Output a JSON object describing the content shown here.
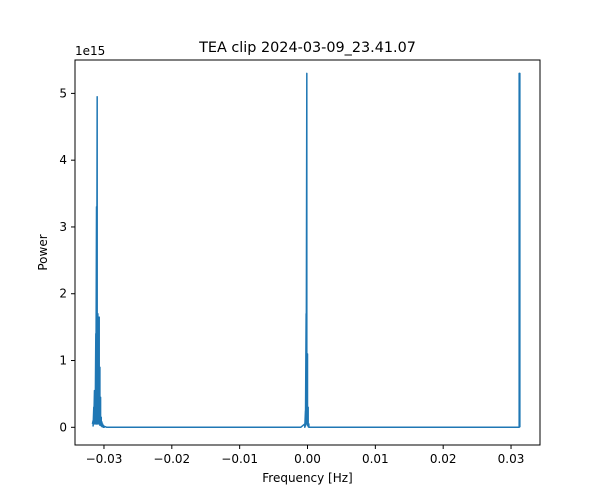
{
  "chart_data": {
    "type": "line",
    "title": "TEA clip 2024-03-09_23.41.07",
    "xlabel": "Frequency [Hz]",
    "ylabel": "Power",
    "y_offset_label": "1e15",
    "y_scale": 1000000000000000.0,
    "xlim": [
      -0.03427,
      0.03427
    ],
    "ylim": [
      -265000000000000.0,
      5500000000000000.0
    ],
    "x_ticks": [
      -0.03,
      -0.02,
      -0.01,
      0.0,
      0.01,
      0.02,
      0.03
    ],
    "x_tick_labels": [
      "−0.03",
      "−0.02",
      "−0.01",
      "0.00",
      "0.01",
      "0.02",
      "0.03"
    ],
    "y_ticks": [
      0,
      1000000000000000.0,
      2000000000000000.0,
      3000000000000000.0,
      4000000000000000.0,
      5000000000000000.0
    ],
    "y_tick_labels": [
      "0",
      "1",
      "2",
      "3",
      "4",
      "5"
    ],
    "grid": false,
    "legend": "none",
    "series": [
      {
        "color": "#1f77b4",
        "x": [
          -0.0317,
          -0.0316,
          -0.0316,
          -0.0315,
          -0.0315,
          -0.0314,
          -0.0314,
          -0.0313,
          -0.0313,
          -0.0312,
          -0.0312,
          -0.0311,
          -0.0311,
          -0.031,
          -0.031,
          -0.0309,
          -0.0309,
          -0.0308,
          -0.0308,
          -0.0307,
          -0.0307,
          -0.0306,
          -0.0306,
          -0.0305,
          -0.0305,
          -0.0304,
          -0.0304,
          -0.0303,
          -0.0303,
          -0.0302,
          -0.0302,
          -0.0301,
          -0.0301,
          -0.03,
          -0.03,
          -0.0298,
          -0.0296,
          -0.029,
          -0.02,
          -0.01,
          -0.001,
          -0.0004,
          -0.0004,
          -0.0003,
          -0.0003,
          -0.0002,
          -0.0002,
          -0.0001,
          -0.0001,
          0.0,
          0.0,
          0.0001,
          0.0001,
          0.0002,
          0.0002,
          0.0004,
          0.001,
          0.01,
          0.02,
          0.0312,
          0.0312,
          0.0313,
          0.0313
        ],
        "y": [
          50000000000000.0,
          100000000000000.0,
          20000000000000.0,
          300000000000000.0,
          50000000000000.0,
          550000000000000.0,
          80000000000000.0,
          200000000000000.0,
          50000000000000.0,
          1400000000000000.0,
          100000000000000.0,
          3300000000000000.0,
          50000000000000.0,
          4950000000000000.0,
          100000000000000.0,
          1700000000000000.0,
          50000000000000.0,
          600000000000000.0,
          80000000000000.0,
          1650000000000000.0,
          50000000000000.0,
          900000000000000.0,
          30000000000000.0,
          450000000000000.0,
          40000000000000.0,
          150000000000000.0,
          20000000000000.0,
          80000000000000.0,
          10000000000000.0,
          50000000000000.0,
          10000000000000.0,
          30000000000000.0,
          0.0,
          20000000000000.0,
          0.0,
          10000000000000.0,
          0.0,
          0.0,
          0.0,
          0.0,
          0.0,
          50000000000000.0,
          0.0,
          250000000000000.0,
          20000000000000.0,
          1700000000000000.0,
          50000000000000.0,
          5300000000000000.0,
          50000000000000.0,
          1100000000000000.0,
          30000000000000.0,
          300000000000000.0,
          10000000000000.0,
          50000000000000.0,
          0.0,
          0.0,
          0.0,
          0.0,
          0.0,
          0.0,
          5300000000000000.0,
          5300000000000000.0,
          0.0
        ]
      }
    ]
  }
}
